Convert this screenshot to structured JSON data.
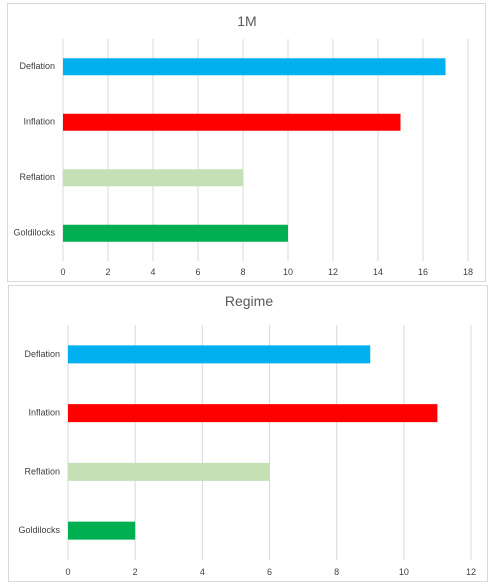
{
  "chart_data": [
    {
      "type": "bar",
      "orientation": "horizontal",
      "title": "1M",
      "categories": [
        "Deflation",
        "Inflation",
        "Reflation",
        "Goldilocks"
      ],
      "values": [
        17,
        15,
        8,
        10
      ],
      "colors": [
        "#00b0f0",
        "#ff0000",
        "#c5e0b4",
        "#00b050"
      ],
      "xlim": [
        0,
        18
      ],
      "xticks": [
        0,
        2,
        4,
        6,
        8,
        10,
        12,
        14,
        16,
        18
      ],
      "grid": true,
      "legend": "none"
    },
    {
      "type": "bar",
      "orientation": "horizontal",
      "title": "Regime",
      "categories": [
        "Deflation",
        "Inflation",
        "Reflation",
        "Goldilocks"
      ],
      "values": [
        9,
        11,
        6,
        2
      ],
      "colors": [
        "#00b0f0",
        "#ff0000",
        "#c5e0b4",
        "#00b050"
      ],
      "xlim": [
        0,
        12
      ],
      "xticks": [
        0,
        2,
        4,
        6,
        8,
        10,
        12
      ],
      "grid": true,
      "legend": "none"
    }
  ]
}
